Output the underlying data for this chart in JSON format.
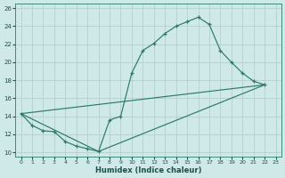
{
  "xlabel": "Humidex (Indice chaleur)",
  "xlim": [
    -0.5,
    23.5
  ],
  "ylim": [
    9.5,
    26.5
  ],
  "xticks": [
    0,
    1,
    2,
    3,
    4,
    5,
    6,
    7,
    8,
    9,
    10,
    11,
    12,
    13,
    14,
    15,
    16,
    17,
    18,
    19,
    20,
    21,
    22,
    23
  ],
  "yticks": [
    10,
    12,
    14,
    16,
    18,
    20,
    22,
    24,
    26
  ],
  "bg_color": "#cfe8e8",
  "grid_color": "#b5d0d0",
  "line_color": "#2d7a6a",
  "line1_x": [
    0,
    1,
    2,
    3,
    4,
    5,
    6,
    7,
    8,
    9,
    10,
    11,
    12,
    13,
    14,
    15,
    16,
    17,
    18,
    19,
    20,
    21,
    22
  ],
  "line1_y": [
    14.3,
    13.0,
    12.4,
    12.3,
    11.2,
    10.7,
    10.4,
    10.1,
    13.6,
    14.0,
    18.8,
    21.3,
    22.1,
    23.2,
    24.0,
    24.5,
    25.0,
    24.2,
    21.3,
    20.0,
    18.8,
    17.9,
    17.5
  ],
  "line2_x": [
    0,
    22
  ],
  "line2_y": [
    14.3,
    17.5
  ],
  "line3_x": [
    0,
    7,
    22
  ],
  "line3_y": [
    14.3,
    10.1,
    17.5
  ]
}
